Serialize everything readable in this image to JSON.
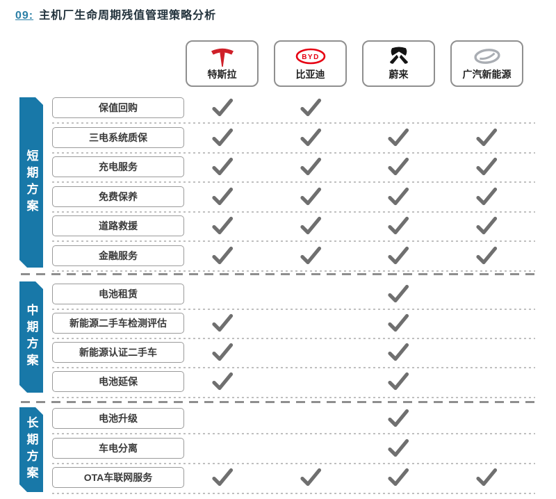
{
  "title": {
    "number": "09:",
    "text": "主机厂生命周期残值管理策略分析"
  },
  "brands": [
    {
      "name": "特斯拉",
      "icon": "tesla-logo"
    },
    {
      "name": "比亚迪",
      "icon": "byd-logo"
    },
    {
      "name": "蔚来",
      "icon": "nio-logo"
    },
    {
      "name": "广汽新能源",
      "icon": "gac-logo"
    }
  ],
  "sections": [
    {
      "label": "短期方案",
      "rows": [
        {
          "label": "保值回购",
          "checks": [
            true,
            true,
            false,
            false
          ]
        },
        {
          "label": "三电系统质保",
          "checks": [
            true,
            true,
            true,
            true
          ]
        },
        {
          "label": "充电服务",
          "checks": [
            true,
            true,
            true,
            true
          ]
        },
        {
          "label": "免费保养",
          "checks": [
            true,
            true,
            true,
            true
          ]
        },
        {
          "label": "道路救援",
          "checks": [
            true,
            true,
            true,
            true
          ]
        },
        {
          "label": "金融服务",
          "checks": [
            true,
            true,
            true,
            true
          ]
        }
      ]
    },
    {
      "label": "中期方案",
      "rows": [
        {
          "label": "电池租赁",
          "checks": [
            false,
            false,
            true,
            false
          ]
        },
        {
          "label": "新能源二手车检测评估",
          "checks": [
            true,
            false,
            true,
            false
          ]
        },
        {
          "label": "新能源认证二手车",
          "checks": [
            true,
            false,
            true,
            false
          ]
        },
        {
          "label": "电池延保",
          "checks": [
            true,
            false,
            true,
            false
          ]
        }
      ]
    },
    {
      "label": "长期方案",
      "rows": [
        {
          "label": "电池升级",
          "checks": [
            false,
            false,
            true,
            false
          ]
        },
        {
          "label": "车电分离",
          "checks": [
            false,
            false,
            true,
            false
          ]
        },
        {
          "label": "OTA车联网服务",
          "checks": [
            true,
            true,
            true,
            true
          ]
        }
      ]
    }
  ],
  "colors": {
    "accent_blue": "#1878a8",
    "check_gray": "#6f6f6f",
    "tesla_red": "#cf2029",
    "byd_red": "#e60012",
    "nio_black": "#141414",
    "gac_silver": "#a9adb3"
  }
}
